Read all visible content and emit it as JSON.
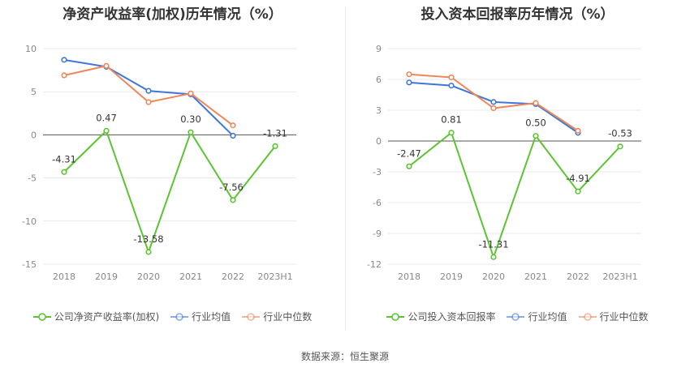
{
  "footer": {
    "source": "数据来源：恒生聚源"
  },
  "colors": {
    "company": "#5cc431",
    "avg": "#3f76d9",
    "median": "#f0875a",
    "grid": "#e9e9ee",
    "zero": "#555555"
  },
  "chart_data": [
    {
      "type": "line",
      "title": "净资产收益率(加权)历年情况（%）",
      "categories": [
        "2018",
        "2019",
        "2020",
        "2021",
        "2022",
        "2023H1"
      ],
      "ylim": [
        -15,
        10
      ],
      "yticks": [
        -15,
        -10,
        -5,
        0,
        5,
        10
      ],
      "series": [
        {
          "name": "公司净资产收益率(加权)",
          "key": "company",
          "values": [
            -4.31,
            0.47,
            -13.58,
            0.3,
            -7.56,
            -1.31
          ],
          "labels": [
            "-4.31",
            "0.47",
            "-13.58",
            "0.30",
            "-7.56",
            "-1.31"
          ]
        },
        {
          "name": "行业均值",
          "key": "avg",
          "values": [
            8.7,
            7.9,
            5.1,
            4.7,
            -0.1,
            null
          ]
        },
        {
          "name": "行业中位数",
          "key": "median",
          "values": [
            6.9,
            8.0,
            3.8,
            4.8,
            1.1,
            null
          ]
        }
      ]
    },
    {
      "type": "line",
      "title": "投入资本回报率历年情况（%）",
      "categories": [
        "2018",
        "2019",
        "2020",
        "2021",
        "2022",
        "2023H1"
      ],
      "ylim": [
        -12,
        9
      ],
      "yticks": [
        -12,
        -9,
        -6,
        -3,
        0,
        3,
        6,
        9
      ],
      "series": [
        {
          "name": "公司投入资本回报率",
          "key": "company",
          "values": [
            -2.47,
            0.81,
            -11.31,
            0.5,
            -4.91,
            -0.53
          ],
          "labels": [
            "-2.47",
            "0.81",
            "-11.31",
            "0.50",
            "-4.91",
            "-0.53"
          ]
        },
        {
          "name": "行业均值",
          "key": "avg",
          "values": [
            5.7,
            5.4,
            3.8,
            3.6,
            0.8,
            null
          ]
        },
        {
          "name": "行业中位数",
          "key": "median",
          "values": [
            6.5,
            6.2,
            3.2,
            3.7,
            1.0,
            null
          ]
        }
      ]
    }
  ]
}
